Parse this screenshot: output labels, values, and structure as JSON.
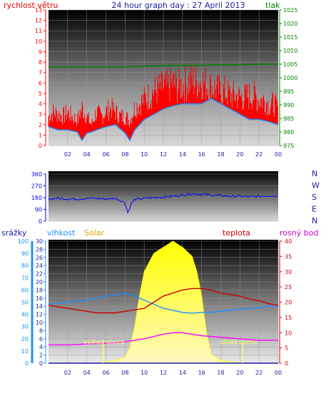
{
  "header": {
    "title": "24 hour graph day : 27 April 2013",
    "wind_label": "rychlost větru",
    "pressure_label": "tlak"
  },
  "direction_panel": {
    "compass": [
      "N",
      "W",
      "S",
      "E",
      "N"
    ]
  },
  "bottom_panel": {
    "rain_label": "srážky",
    "humidity_label": "vlhkost",
    "solar_label": "Solar",
    "temp_label": "teplota",
    "dew_label": "rosný bod",
    "sunrise_label": "východ slunce",
    "sunset_label": "západ slunce"
  },
  "colors": {
    "wind": "#ff0000",
    "wind_avg": "#1e90ff",
    "pressure": "#008000",
    "direction": "#0000ff",
    "rain": "#1e90ff",
    "humidity": "#1e90ff",
    "solar": "#ffff00",
    "temp": "#cc0000",
    "dew": "#ff00ff",
    "sun_event": "#ffff66"
  },
  "chart_data": [
    {
      "type": "line",
      "id": "wind-pressure",
      "x_ticks": [
        "02",
        "04",
        "06",
        "08",
        "10",
        "12",
        "14",
        "16",
        "18",
        "20",
        "22",
        "00"
      ],
      "x_range_hours": [
        0,
        24
      ],
      "ylim_left": [
        0,
        13
      ],
      "yticks_left": [
        0,
        1,
        2,
        3,
        4,
        5,
        6,
        7,
        8,
        9,
        10,
        11,
        12,
        13
      ],
      "ylim_right": [
        975,
        1025
      ],
      "yticks_right": [
        975,
        980,
        985,
        990,
        995,
        1000,
        1005,
        1010,
        1015,
        1020,
        1025
      ],
      "grid": true,
      "series": [
        {
          "name": "rychlost větru",
          "axis": "left",
          "x": [
            0,
            0.5,
            1,
            1.5,
            2,
            2.5,
            3,
            3.5,
            4,
            4.5,
            5,
            5.5,
            6,
            6.5,
            7,
            7.5,
            8,
            8.5,
            9,
            9.5,
            10,
            10.5,
            11,
            11.5,
            12,
            12.5,
            13,
            13.5,
            14,
            14.5,
            15,
            15.5,
            16,
            16.5,
            17,
            17.5,
            18,
            18.5,
            19,
            19.5,
            20,
            20.5,
            21,
            21.5,
            22,
            22.5,
            23,
            23.5,
            24
          ],
          "values": [
            3.5,
            4,
            3.8,
            3.5,
            4,
            3.5,
            3,
            4.5,
            3.5,
            2.5,
            4,
            3.5,
            4,
            4.5,
            4,
            3.5,
            3.5,
            3,
            4.5,
            5,
            5.5,
            6,
            6.5,
            6.8,
            7,
            7,
            7.5,
            7,
            7.3,
            7.5,
            7.8,
            7.5,
            7.8,
            7.3,
            7,
            6.8,
            6.5,
            6.5,
            6,
            6,
            5.8,
            5.8,
            6,
            6,
            5.5,
            5.5,
            5,
            5,
            4.5
          ]
        },
        {
          "name": "",
          "axis": "left",
          "x": [
            0,
            1,
            2,
            3,
            3.5,
            4,
            4.5,
            5,
            6,
            7,
            8,
            8.5,
            9,
            10,
            11,
            12,
            13,
            14,
            15,
            16,
            17,
            18,
            19,
            20,
            21,
            22,
            23,
            24
          ],
          "values": [
            1.8,
            1.5,
            1.5,
            1.3,
            0.5,
            1.2,
            1.3,
            1.5,
            1.8,
            2,
            1.2,
            0.5,
            1.5,
            2.5,
            3,
            3.5,
            3.8,
            4,
            4,
            4,
            4.5,
            4,
            3.5,
            3,
            2.5,
            2.5,
            2.3,
            2
          ]
        },
        {
          "name": "tlak",
          "axis": "right",
          "x": [
            0,
            2,
            4,
            6,
            8,
            10,
            12,
            14,
            16,
            18,
            20,
            22,
            24
          ],
          "values": [
            1004,
            1004,
            1004,
            1004,
            1004,
            1004.3,
            1004.5,
            1004.5,
            1004.6,
            1004.8,
            1004.8,
            1005,
            1005
          ]
        }
      ]
    },
    {
      "type": "line",
      "id": "wind-direction",
      "x_range_hours": [
        0,
        24
      ],
      "ylim": [
        0,
        360
      ],
      "yticks": [
        0,
        90,
        180,
        270,
        360
      ],
      "grid": true,
      "series": [
        {
          "name": "",
          "x": [
            0,
            1,
            2,
            3,
            4,
            5,
            6,
            7,
            7.5,
            8,
            8.3,
            8.6,
            9,
            10,
            11,
            12,
            13,
            14,
            15,
            16,
            17,
            18,
            19,
            20,
            21,
            22,
            23,
            24
          ],
          "values": [
            170,
            175,
            170,
            170,
            175,
            175,
            170,
            175,
            160,
            140,
            60,
            130,
            165,
            175,
            180,
            185,
            190,
            200,
            210,
            205,
            200,
            195,
            190,
            190,
            185,
            190,
            195,
            190
          ]
        }
      ]
    },
    {
      "type": "line",
      "id": "rain-humidity-solar-temp",
      "x_ticks": [
        "02",
        "04",
        "06",
        "08",
        "10",
        "12",
        "14",
        "16",
        "18",
        "20",
        "22",
        "00"
      ],
      "x_range_hours": [
        0,
        24
      ],
      "ylim_rain": [
        0,
        100
      ],
      "yticks_rain": [
        0,
        10,
        20,
        30,
        40,
        50,
        60,
        70,
        80,
        90,
        100
      ],
      "ylim_humidity": [
        0,
        30
      ],
      "yticks_humidity": [
        0,
        2,
        4,
        6,
        8,
        10,
        12,
        14,
        16,
        18,
        20,
        22,
        24,
        26,
        28,
        30
      ],
      "ylim_temp": [
        0,
        40
      ],
      "yticks_temp": [
        0,
        5,
        10,
        15,
        20,
        25,
        30,
        35,
        40
      ],
      "grid": true,
      "sunrise_hour": 5.7,
      "sunset_hour": 20.3,
      "series": [
        {
          "name": "vlhkost",
          "axis": "humidity",
          "x": [
            0,
            1,
            2,
            3,
            4,
            5,
            6,
            7,
            8,
            9,
            10,
            11,
            12,
            13,
            14,
            15,
            16,
            17,
            18,
            19,
            20,
            21,
            22,
            23,
            24
          ],
          "values": [
            14.5,
            14.8,
            15,
            15.3,
            15.5,
            16,
            16.5,
            16.8,
            17.2,
            16.5,
            15.5,
            14.5,
            13.5,
            13,
            12.5,
            12.3,
            12.5,
            12.5,
            12.8,
            13,
            13.3,
            13.5,
            13.7,
            14,
            14
          ]
        },
        {
          "name": "teplota",
          "axis": "temp",
          "x": [
            0,
            1,
            2,
            3,
            4,
            5,
            6,
            7,
            8,
            9,
            10,
            11,
            12,
            13,
            14,
            15,
            16,
            17,
            18,
            19,
            20,
            21,
            22,
            23,
            24
          ],
          "values": [
            19,
            18.5,
            18,
            17.5,
            17,
            16.5,
            16.5,
            16.5,
            17,
            17.5,
            18,
            20,
            22,
            23,
            24,
            24.5,
            24.5,
            24,
            23,
            22.5,
            22,
            21,
            20.5,
            19.5,
            19
          ]
        },
        {
          "name": "rosný bod",
          "axis": "temp",
          "x": [
            0,
            2,
            4,
            6,
            8,
            10,
            12,
            13,
            14,
            15,
            16,
            18,
            20,
            22,
            24
          ],
          "values": [
            6,
            6,
            6.3,
            6.5,
            7,
            8,
            9.5,
            10,
            10,
            9.5,
            9,
            8.5,
            8,
            7.5,
            7.5
          ]
        },
        {
          "name": "Solar",
          "axis": "temp",
          "x": [
            5.6,
            6,
            7,
            8,
            8.5,
            9,
            9.5,
            10,
            11,
            12,
            13,
            14,
            15,
            15.5,
            16,
            16.5,
            17,
            18,
            19,
            20.3
          ],
          "values": [
            0,
            0.5,
            1,
            2,
            5,
            12,
            22,
            30,
            36,
            38,
            40,
            38,
            35,
            30,
            22,
            10,
            3,
            1,
            0.5,
            0
          ]
        },
        {
          "name": "srážky",
          "axis": "rain",
          "x": [
            0,
            24
          ],
          "values": [
            0,
            0
          ]
        }
      ]
    }
  ]
}
